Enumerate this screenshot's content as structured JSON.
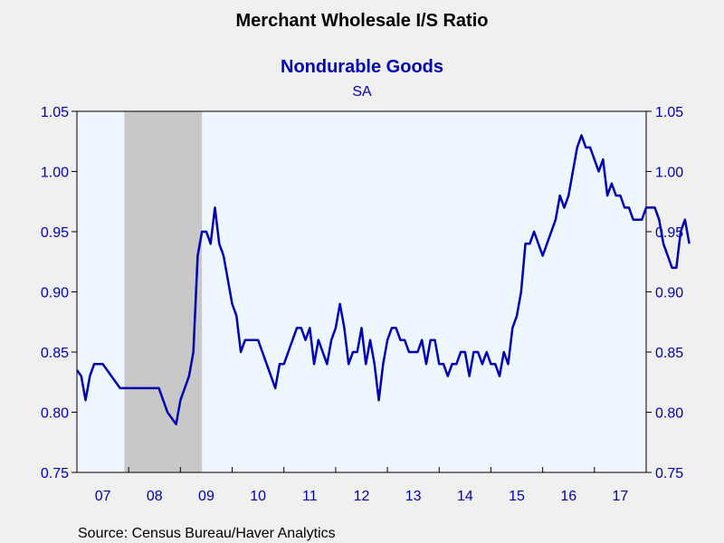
{
  "chart_data": {
    "type": "line",
    "title": "Merchant Wholesale I/S Ratio",
    "subtitle": "Nondurable Goods",
    "subtitle2": "SA",
    "source": "Source:  Census Bureau/Haver Analytics",
    "x_tick_labels": [
      "07",
      "08",
      "09",
      "10",
      "11",
      "12",
      "13",
      "14",
      "15",
      "16",
      "17"
    ],
    "y_tick_labels": [
      "1.05",
      "1.00",
      "0.95",
      "0.90",
      "0.85",
      "0.80",
      "0.75"
    ],
    "y_ticks": [
      1.05,
      1.0,
      0.95,
      0.9,
      0.85,
      0.8,
      0.75
    ],
    "ylim": [
      0.75,
      1.05
    ],
    "xlim": [
      "2007-01",
      "2018-01"
    ],
    "grid": false,
    "legend": "none",
    "recession_shading": {
      "start": "2007-12",
      "end": "2009-06"
    },
    "colors": {
      "line": "#0000b3",
      "plot_bg": "#eef6ff",
      "recession": "#c8c8c8",
      "axis_text": "#0000b3",
      "title": "#000000",
      "subtitle": "#0000b3"
    },
    "series": [
      {
        "name": "Nondurable Goods",
        "start": "2007-01",
        "frequency": "monthly",
        "values": [
          0.835,
          0.83,
          0.81,
          0.83,
          0.84,
          0.84,
          0.84,
          0.835,
          0.83,
          0.825,
          0.82,
          0.82,
          0.82,
          0.82,
          0.82,
          0.82,
          0.82,
          0.82,
          0.82,
          0.82,
          0.81,
          0.8,
          0.795,
          0.79,
          0.81,
          0.82,
          0.83,
          0.85,
          0.93,
          0.95,
          0.95,
          0.94,
          0.97,
          0.94,
          0.93,
          0.91,
          0.89,
          0.88,
          0.85,
          0.86,
          0.86,
          0.86,
          0.86,
          0.85,
          0.84,
          0.83,
          0.82,
          0.84,
          0.84,
          0.85,
          0.86,
          0.87,
          0.87,
          0.86,
          0.87,
          0.84,
          0.86,
          0.85,
          0.84,
          0.86,
          0.87,
          0.89,
          0.87,
          0.84,
          0.85,
          0.85,
          0.87,
          0.84,
          0.86,
          0.84,
          0.81,
          0.84,
          0.86,
          0.87,
          0.87,
          0.86,
          0.86,
          0.85,
          0.85,
          0.85,
          0.86,
          0.84,
          0.86,
          0.86,
          0.84,
          0.84,
          0.83,
          0.84,
          0.84,
          0.85,
          0.85,
          0.83,
          0.85,
          0.85,
          0.84,
          0.85,
          0.84,
          0.84,
          0.83,
          0.85,
          0.84,
          0.87,
          0.88,
          0.9,
          0.94,
          0.94,
          0.95,
          0.94,
          0.93,
          0.94,
          0.95,
          0.96,
          0.98,
          0.97,
          0.98,
          1.0,
          1.02,
          1.03,
          1.02,
          1.02,
          1.01,
          1.0,
          1.01,
          0.98,
          0.99,
          0.98,
          0.98,
          0.97,
          0.97,
          0.96,
          0.96,
          0.96,
          0.97,
          0.97,
          0.97,
          0.96,
          0.94,
          0.93,
          0.92,
          0.92,
          0.95,
          0.96,
          0.94
        ]
      }
    ]
  }
}
